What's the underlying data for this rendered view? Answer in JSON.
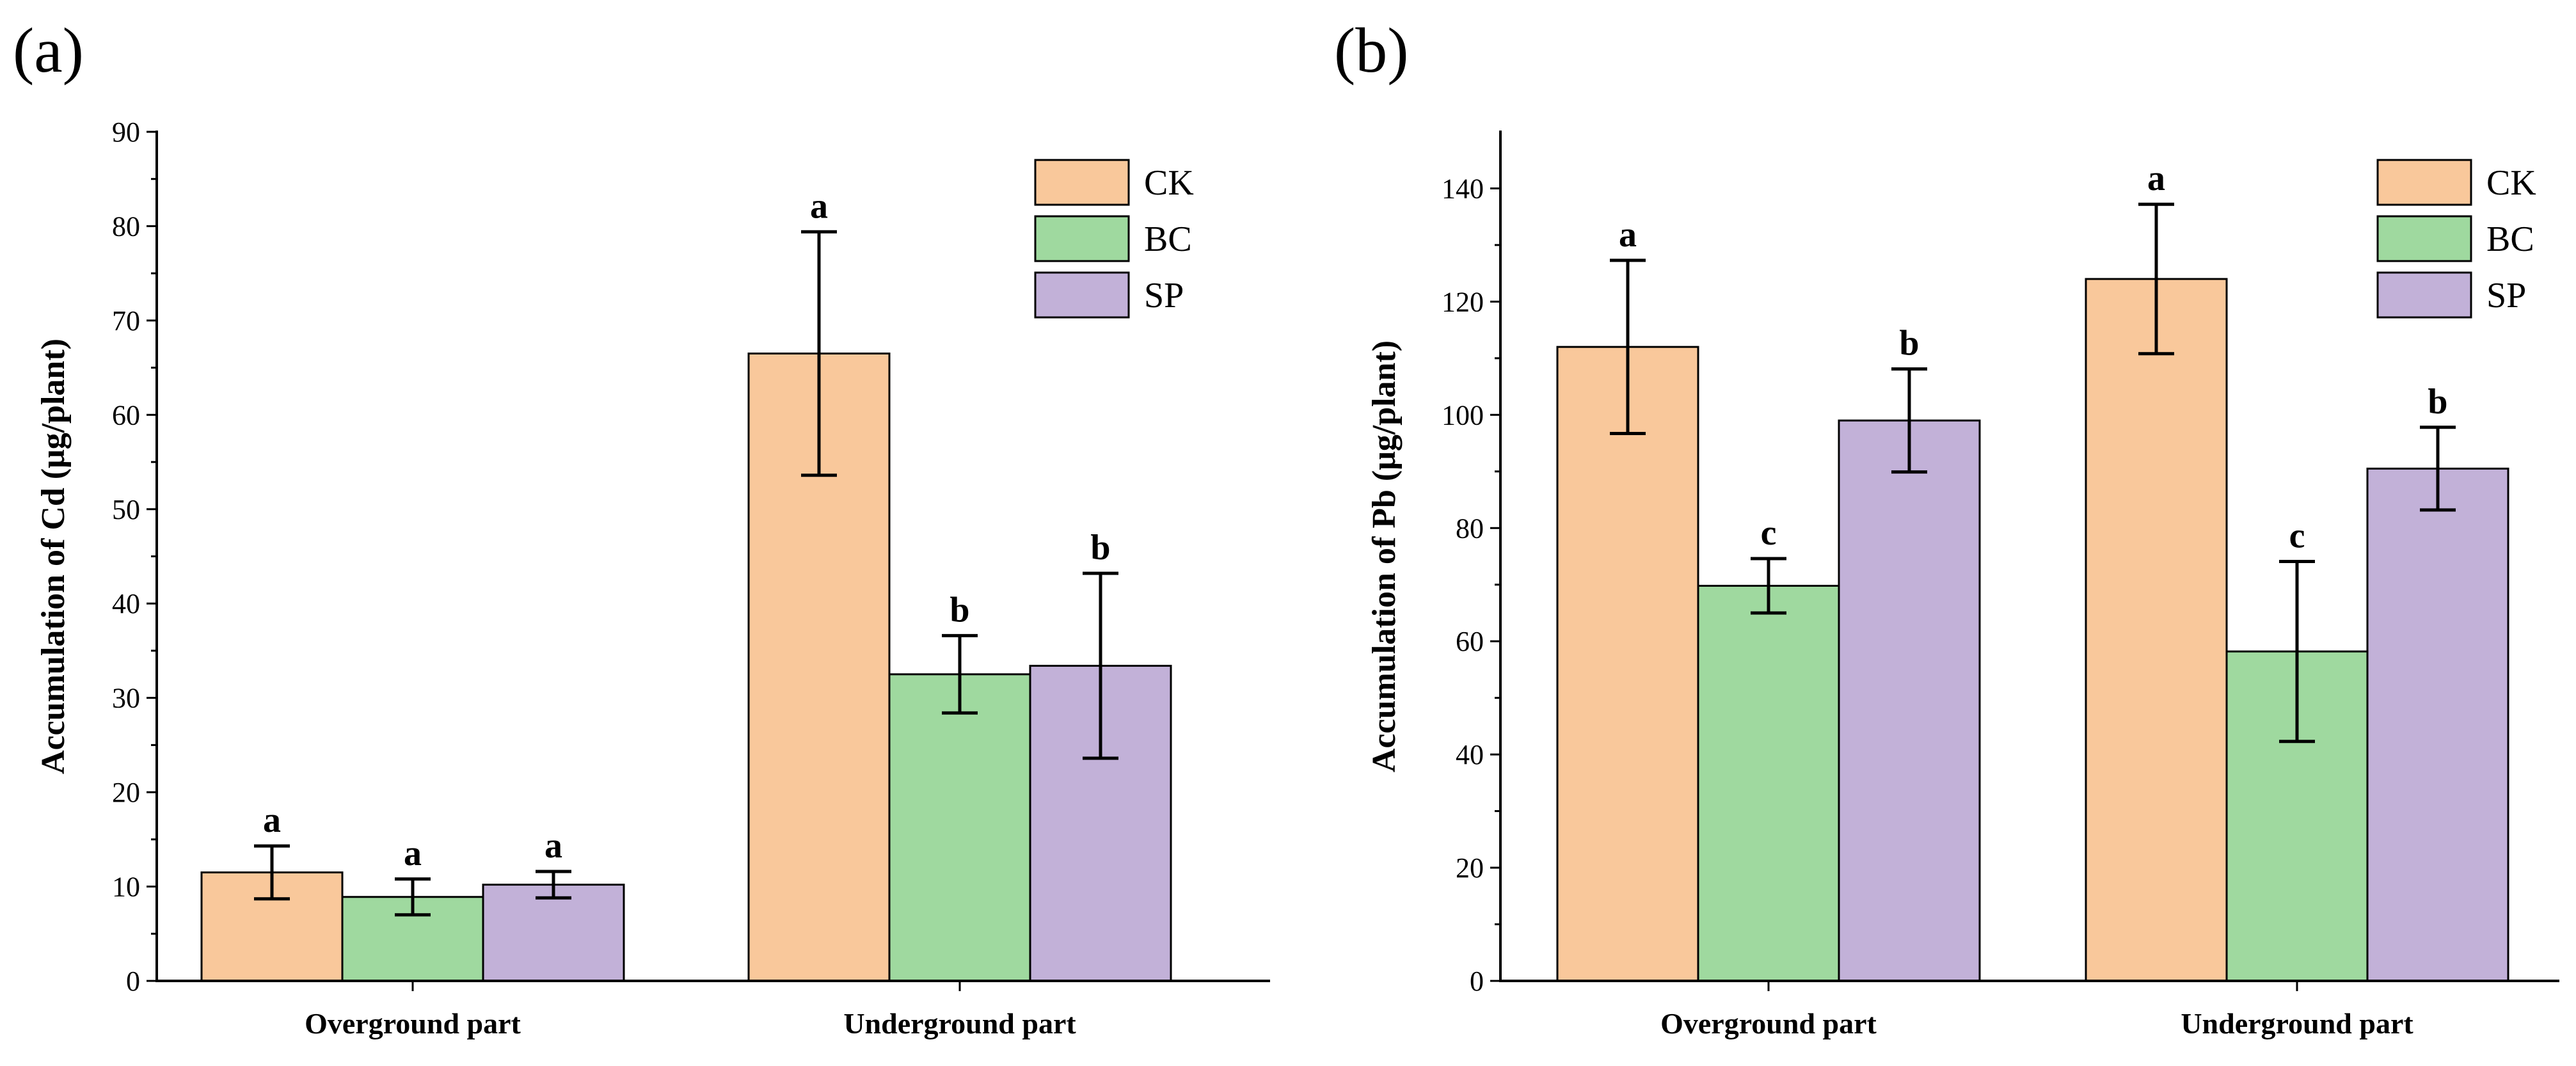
{
  "chart_data": [
    {
      "type": "bar",
      "panel_label": "(a)",
      "categories": [
        "Overground part",
        "Underground part"
      ],
      "ylabel": "Accumulation of Cd (μg/plant)",
      "ylim": [
        0,
        90
      ],
      "yticks": [
        0,
        10,
        20,
        30,
        40,
        50,
        60,
        70,
        80,
        90
      ],
      "legend": "top-right",
      "series": [
        {
          "name": "CK",
          "color": "#F9C89B",
          "values": [
            11.5,
            66.5
          ],
          "errors": [
            2.8,
            12.9
          ],
          "letters": [
            "a",
            "a"
          ]
        },
        {
          "name": "BC",
          "color": "#9FD99F",
          "values": [
            8.9,
            32.5
          ],
          "errors": [
            1.9,
            4.1
          ],
          "letters": [
            "a",
            "b"
          ]
        },
        {
          "name": "SP",
          "color": "#C2B1D8",
          "values": [
            10.2,
            33.4
          ],
          "errors": [
            1.4,
            9.8
          ],
          "letters": [
            "a",
            "b"
          ]
        }
      ]
    },
    {
      "type": "bar",
      "panel_label": "(b)",
      "categories": [
        "Overground part",
        "Underground part"
      ],
      "ylabel": "Accumulation of Pb (μg/plant)",
      "ylim": [
        0,
        150
      ],
      "yticks": [
        0,
        20,
        40,
        60,
        80,
        100,
        120,
        140
      ],
      "legend": "top-right",
      "series": [
        {
          "name": "CK",
          "color": "#F9C89B",
          "values": [
            112,
            124
          ],
          "errors": [
            15.3,
            13.2
          ],
          "letters": [
            "a",
            "a"
          ]
        },
        {
          "name": "BC",
          "color": "#9FD99F",
          "values": [
            69.8,
            58.2
          ],
          "errors": [
            4.8,
            15.9
          ],
          "letters": [
            "c",
            "c"
          ]
        },
        {
          "name": "SP",
          "color": "#C2B1D8",
          "values": [
            99,
            90.5
          ],
          "errors": [
            9.1,
            7.3
          ],
          "letters": [
            "b",
            "b"
          ]
        }
      ]
    }
  ]
}
